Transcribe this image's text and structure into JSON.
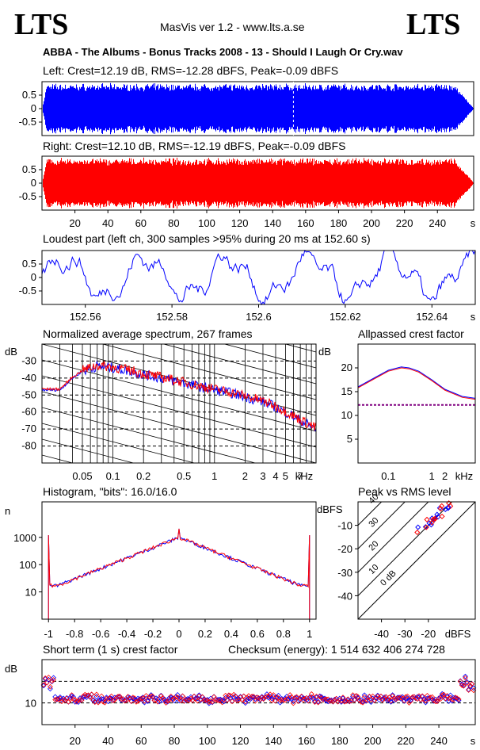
{
  "header": {
    "logo_left": "LTS",
    "logo_right": "LTS",
    "version": "MasVis ver 1.2 - www.lts.a.se",
    "file_title": "ABBA - The Albums - Bonus Tracks 2008 - 13 - Should I Laugh Or Cry.wav"
  },
  "colors": {
    "left": "#0000ff",
    "right": "#ff0000"
  },
  "panels": {
    "left_wave": {
      "title": "Left: Crest=12.19 dB, RMS=-12.28 dBFS, Peak=-0.09 dBFS",
      "yticks": [
        "0.5",
        "0",
        "-0.5"
      ]
    },
    "right_wave": {
      "title": "Right: Crest=12.10 dB, RMS=-12.19 dBFS, Peak=-0.09 dBFS",
      "yticks": [
        "0.5",
        "0",
        "-0.5"
      ],
      "xticks": [
        "20",
        "40",
        "60",
        "80",
        "100",
        "120",
        "140",
        "160",
        "180",
        "200",
        "220",
        "240"
      ],
      "xunit": "s"
    },
    "loudest": {
      "title": "Loudest part (left  ch, 300 samples >95% during 20 ms at 152.60 s)",
      "yticks": [
        "0.5",
        "0",
        "-0.5"
      ],
      "xticks": [
        "152.56",
        "152.58",
        "152.6",
        "152.62",
        "152.64"
      ],
      "xunit": "s"
    },
    "spectrum": {
      "title": "Normalized average spectrum, 267 frames",
      "ylabel": "dB",
      "yticks": [
        "-30",
        "-40",
        "-50",
        "-60",
        "-70",
        "-80"
      ],
      "xticks": [
        "0.05",
        "0.1",
        "0.2",
        "0.5",
        "1",
        "2",
        "3",
        "4",
        "5",
        "7"
      ],
      "xunit": "kHz"
    },
    "allpass": {
      "title": "Allpassed crest factor",
      "ylabel": "dB",
      "yticks": [
        "20",
        "15",
        "10",
        "5"
      ],
      "xticks": [
        "0.1",
        "1",
        "2"
      ],
      "xunit": "kHz"
    },
    "histogram": {
      "title": "Histogram, \"bits\": 16.0/16.0",
      "ylabel": "n",
      "yticks": [
        "1000",
        "100",
        "10"
      ],
      "xticks": [
        "-1",
        "-0.8",
        "-0.6",
        "-0.4",
        "-0.2",
        "0",
        "0.2",
        "0.4",
        "0.6",
        "0.8",
        "1"
      ]
    },
    "peak_rms": {
      "title": "Peak vs RMS level",
      "ylabel": "dBFS",
      "yticks": [
        "-10",
        "-20",
        "-30",
        "-40"
      ],
      "xticks": [
        "-40",
        "-30",
        "-20"
      ],
      "xunit": "dBFS",
      "crest_labels": [
        "40",
        "30",
        "20",
        "10",
        "0 dB"
      ]
    },
    "short_term": {
      "title": "Short term (1 s) crest factor",
      "checksum": "Checksum (energy):  1 514 632 406 274 728",
      "ylabel": "dB",
      "yticks": [
        "10"
      ],
      "xticks": [
        "20",
        "40",
        "60",
        "80",
        "100",
        "120",
        "140",
        "160",
        "180",
        "200",
        "220",
        "240"
      ],
      "xunit": "s"
    }
  },
  "chart_data": [
    {
      "type": "area",
      "panel": "left_wave",
      "x_range_s": [
        0,
        262
      ],
      "ylim": [
        -1,
        1
      ],
      "peak": -0.09,
      "marker_s": 152.6
    },
    {
      "type": "area",
      "panel": "right_wave",
      "x_range_s": [
        0,
        262
      ],
      "ylim": [
        -1,
        1
      ],
      "peak": -0.09
    },
    {
      "type": "line",
      "panel": "loudest",
      "xlim": [
        152.55,
        152.65
      ],
      "ylim": [
        -1,
        1
      ]
    },
    {
      "type": "line",
      "panel": "spectrum",
      "x": [
        0.02,
        0.03,
        0.04,
        0.05,
        0.07,
        0.1,
        0.15,
        0.2,
        0.3,
        0.5,
        0.7,
        1,
        1.5,
        2,
        3,
        4,
        5,
        7,
        10
      ],
      "series": [
        {
          "name": "L",
          "values": [
            -47,
            -47,
            -40,
            -36,
            -33,
            -34,
            -36,
            -38,
            -40,
            -43,
            -45,
            -47,
            -49,
            -51,
            -54,
            -57,
            -60,
            -65,
            -70
          ]
        }
      ],
      "ylim": [
        -90,
        -20
      ]
    },
    {
      "type": "line",
      "panel": "allpass",
      "x": [
        0.02,
        0.05,
        0.1,
        0.2,
        0.3,
        0.5,
        1,
        2,
        5,
        10
      ],
      "series": [
        {
          "name": "L",
          "values": [
            16,
            18,
            19.5,
            20.2,
            20,
            19.3,
            17.5,
            15.5,
            14,
            13.6
          ]
        }
      ],
      "reference": 12.2,
      "ylim": [
        0,
        25
      ]
    },
    {
      "type": "line",
      "panel": "histogram",
      "xlim": [
        -1.05,
        1.05
      ],
      "ylim_log": [
        1,
        20000
      ],
      "x": [
        -1,
        -0.8,
        -0.6,
        -0.4,
        -0.2,
        -0.05,
        0,
        0.05,
        0.2,
        0.4,
        0.6,
        0.8,
        1
      ],
      "series": [
        {
          "name": "L",
          "values": [
            18,
            18,
            30,
            80,
            250,
            600,
            2000,
            600,
            250,
            80,
            30,
            18,
            18
          ]
        }
      ]
    },
    {
      "type": "scatter",
      "panel": "peak_rms",
      "xlim": [
        -50,
        0
      ],
      "ylim": [
        -50,
        0
      ],
      "x": [
        -25,
        -22,
        -20,
        -19,
        -18,
        -17,
        -16,
        -15,
        -14,
        -13,
        -12,
        -11
      ],
      "y": [
        -12,
        -10,
        -9,
        -8,
        -8,
        -7,
        -6,
        -5,
        -4,
        -3,
        -2,
        -1
      ]
    },
    {
      "type": "scatter",
      "panel": "short_term",
      "xlim": [
        0,
        262
      ],
      "ylim": [
        0,
        30
      ],
      "reference": [
        10,
        20
      ]
    }
  ]
}
